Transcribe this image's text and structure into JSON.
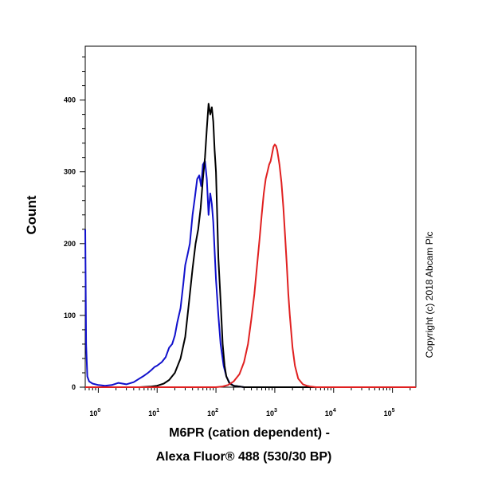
{
  "chart_data": {
    "type": "line",
    "title": "",
    "ylabel": "Count",
    "xlabel_line1": "M6PR (cation dependent) -",
    "xlabel_line2": "Alexa Fluor® 488 (530/30 BP)",
    "x_scale": "log",
    "xlim": [
      0.6,
      250000
    ],
    "ylim": [
      0,
      475
    ],
    "y_ticks": [
      0,
      100,
      200,
      300,
      400
    ],
    "y_tick_labels": [
      "0",
      "100",
      "200",
      "300",
      "400"
    ],
    "x_ticks": [
      1,
      10,
      100,
      1000,
      10000,
      100000
    ],
    "x_tick_bases": [
      "10",
      "10",
      "10",
      "10",
      "10",
      "10"
    ],
    "x_tick_exponents": [
      "0",
      "1",
      "2",
      "3",
      "4",
      "5"
    ],
    "grid": false,
    "legend": "none",
    "copyright": "Copyright (c) 2018 Abcam Plc",
    "series": [
      {
        "color": "#1010cc",
        "x": [
          0.6,
          0.62,
          0.65,
          0.7,
          0.8,
          1.0,
          1.3,
          1.7,
          2.2,
          3,
          4,
          5,
          6,
          7,
          8,
          9,
          10,
          12,
          14,
          16,
          18,
          20,
          22,
          25,
          28,
          30,
          33,
          36,
          40,
          44,
          48,
          52,
          56,
          60,
          65,
          70,
          75,
          80,
          85,
          90,
          100,
          110,
          120,
          135,
          150,
          170,
          200,
          250,
          300,
          500,
          1000,
          10000,
          250000
        ],
        "y": [
          220,
          60,
          15,
          8,
          5,
          3,
          2,
          3,
          6,
          4,
          7,
          12,
          16,
          20,
          24,
          28,
          30,
          35,
          42,
          55,
          60,
          72,
          90,
          110,
          145,
          170,
          185,
          200,
          240,
          265,
          290,
          295,
          280,
          310,
          315,
          290,
          240,
          270,
          255,
          230,
          150,
          100,
          60,
          30,
          15,
          6,
          2,
          1,
          0,
          0,
          0,
          0,
          0
        ]
      },
      {
        "color": "#000000",
        "x": [
          5,
          8,
          10,
          13,
          16,
          20,
          25,
          30,
          35,
          40,
          45,
          50,
          55,
          60,
          65,
          70,
          75,
          80,
          85,
          90,
          95,
          100,
          105,
          110,
          120,
          130,
          140,
          150,
          170,
          200,
          250,
          300,
          500,
          1000,
          10000,
          250000
        ],
        "y": [
          0,
          1,
          2,
          5,
          10,
          20,
          40,
          70,
          120,
          165,
          200,
          220,
          250,
          290,
          320,
          360,
          395,
          380,
          390,
          370,
          330,
          300,
          240,
          180,
          120,
          60,
          30,
          15,
          5,
          2,
          1,
          0,
          0,
          0,
          0,
          0
        ]
      },
      {
        "color": "#e02020",
        "x": [
          0.6,
          10,
          100,
          130,
          160,
          200,
          250,
          300,
          350,
          400,
          450,
          500,
          550,
          600,
          650,
          700,
          750,
          800,
          850,
          900,
          950,
          1000,
          1050,
          1100,
          1200,
          1300,
          1400,
          1500,
          1600,
          1700,
          1800,
          2000,
          2200,
          2500,
          3000,
          3500,
          4000,
          5000,
          10000,
          250000
        ],
        "y": [
          0,
          0,
          0,
          1,
          3,
          8,
          18,
          35,
          60,
          95,
          130,
          170,
          205,
          240,
          270,
          290,
          300,
          310,
          315,
          325,
          335,
          338,
          336,
          330,
          310,
          285,
          250,
          210,
          170,
          130,
          100,
          55,
          30,
          12,
          4,
          2,
          1,
          0,
          0,
          0
        ]
      }
    ]
  }
}
